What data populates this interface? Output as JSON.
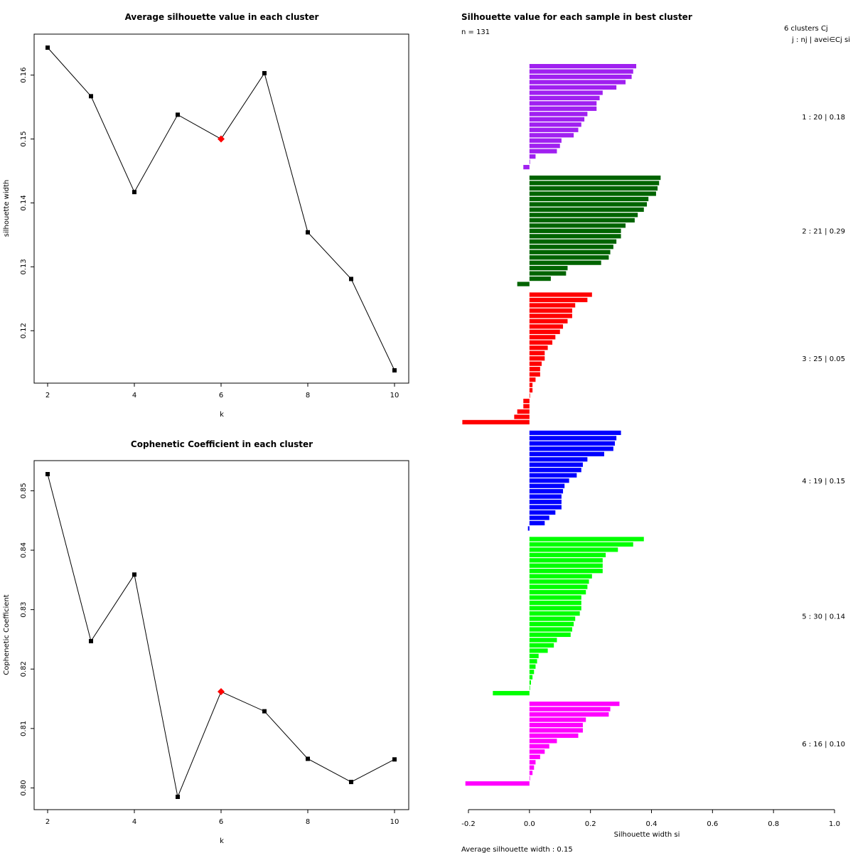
{
  "chart_data": [
    {
      "type": "line",
      "title": "Average silhouette value in each cluster",
      "xlabel": "k",
      "ylabel": "silhouette width",
      "x": [
        2,
        3,
        4,
        5,
        6,
        7,
        8,
        9,
        10
      ],
      "values": [
        0.1643,
        0.1567,
        0.1417,
        0.1538,
        0.15,
        0.1603,
        0.1354,
        0.1281,
        0.1138
      ],
      "highlight_k": 6,
      "xticks": [
        "2",
        "4",
        "6",
        "8",
        "10"
      ],
      "yticks": [
        "0.12",
        "0.13",
        "0.14",
        "0.15",
        "0.16"
      ],
      "xlim": [
        2,
        10
      ],
      "ylim": [
        0.1138,
        0.1643
      ]
    },
    {
      "type": "line",
      "title": "Cophenetic Coefficient in each cluster",
      "xlabel": "k",
      "ylabel": "Cophenetic Coefficient",
      "x": [
        2,
        3,
        4,
        5,
        6,
        7,
        8,
        9,
        10
      ],
      "values": [
        0.8528,
        0.8247,
        0.8359,
        0.7985,
        0.8162,
        0.8129,
        0.8049,
        0.801,
        0.8048
      ],
      "highlight_k": 6,
      "xticks": [
        "2",
        "4",
        "6",
        "8",
        "10"
      ],
      "yticks": [
        "0.80",
        "0.81",
        "0.82",
        "0.83",
        "0.84",
        "0.85"
      ],
      "xlim": [
        2,
        10
      ],
      "ylim": [
        0.7985,
        0.8528
      ]
    },
    {
      "type": "bar",
      "title": "Silhouette value for each sample in best cluster",
      "n_label": "n = 131",
      "header_line1": "6  clusters  Cj",
      "header_line2": "j :  nj | avei∈Cj  si",
      "xlabel": "Silhouette width si",
      "footer": "Average silhouette width :  0.15",
      "xlim": [
        -0.2,
        1.0
      ],
      "xticks": [
        "-0.2",
        "0.0",
        "0.2",
        "0.4",
        "0.6",
        "0.8",
        "1.0"
      ],
      "series": [
        {
          "name": "1 :  20  |  0.18",
          "color": "#a020f0",
          "values": [
            0.35,
            0.34,
            0.335,
            0.315,
            0.285,
            0.24,
            0.23,
            0.22,
            0.22,
            0.19,
            0.18,
            0.17,
            0.16,
            0.145,
            0.105,
            0.1,
            0.09,
            0.02,
            0,
            -0.02
          ]
        },
        {
          "name": "2 :  21  |  0.29",
          "color": "#006400",
          "values": [
            0.43,
            0.425,
            0.42,
            0.415,
            0.39,
            0.385,
            0.375,
            0.355,
            0.345,
            0.315,
            0.3,
            0.3,
            0.285,
            0.275,
            0.265,
            0.26,
            0.235,
            0.125,
            0.12,
            0.07,
            -0.04
          ]
        },
        {
          "name": "3 :  25  |  0.05",
          "color": "#ff0000",
          "values": [
            0.205,
            0.19,
            0.15,
            0.14,
            0.14,
            0.125,
            0.11,
            0.1,
            0.085,
            0.075,
            0.06,
            0.05,
            0.05,
            0.04,
            0.035,
            0.035,
            0.02,
            0.01,
            0.01,
            0,
            -0.02,
            -0.02,
            -0.04,
            -0.05,
            -0.22
          ]
        },
        {
          "name": "4 :  19  |  0.15",
          "color": "#0000ff",
          "values": [
            0.3,
            0.285,
            0.28,
            0.275,
            0.245,
            0.19,
            0.175,
            0.17,
            0.155,
            0.13,
            0.115,
            0.11,
            0.105,
            0.105,
            0.105,
            0.085,
            0.065,
            0.05,
            -0.005
          ]
        },
        {
          "name": "5 :  30  |  0.14",
          "color": "#00ff00",
          "values": [
            0.375,
            0.34,
            0.29,
            0.25,
            0.24,
            0.24,
            0.24,
            0.205,
            0.195,
            0.19,
            0.185,
            0.17,
            0.17,
            0.17,
            0.165,
            0.15,
            0.145,
            0.14,
            0.135,
            0.09,
            0.08,
            0.06,
            0.03,
            0.025,
            0.02,
            0.015,
            0.01,
            0.005,
            0.0,
            -0.12
          ]
        },
        {
          "name": "6 :  16  |  0.10",
          "color": "#ff00ff",
          "values": [
            0.295,
            0.265,
            0.26,
            0.185,
            0.175,
            0.175,
            0.16,
            0.09,
            0.065,
            0.05,
            0.035,
            0.02,
            0.015,
            0.01,
            0,
            -0.21
          ]
        }
      ]
    }
  ]
}
